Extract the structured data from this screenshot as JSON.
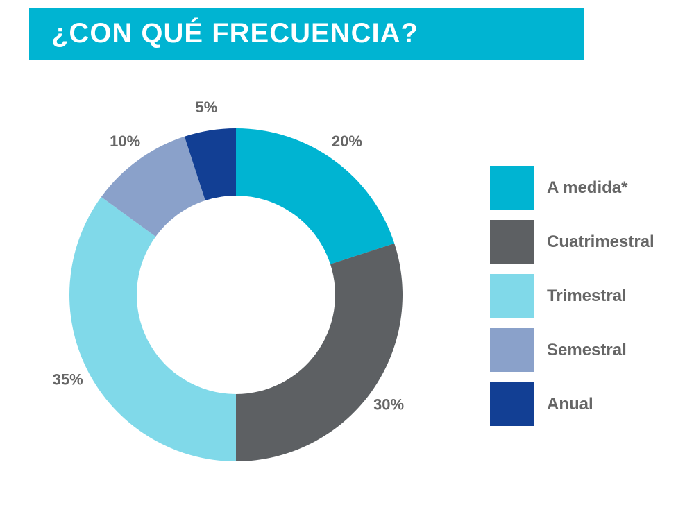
{
  "title": "¿CON QUÉ FRECUENCIA?",
  "colors": {
    "title_bg": "#00b4d2",
    "title_text": "#ffffff",
    "label_text": "#666666"
  },
  "chart_data": {
    "type": "pie",
    "subtype": "donut",
    "title": "¿CON QUÉ FRECUENCIA?",
    "legend_position": "right",
    "slices": [
      {
        "name": "A medida*",
        "value": 20,
        "label": "20%",
        "color": "#00b4d2"
      },
      {
        "name": "Cuatrimestral",
        "value": 30,
        "label": "30%",
        "color": "#5d6063"
      },
      {
        "name": "Trimestral",
        "value": 35,
        "label": "35%",
        "color": "#80d9e9"
      },
      {
        "name": "Semestral",
        "value": 10,
        "label": "10%",
        "color": "#8aa1ca"
      },
      {
        "name": "Anual",
        "value": 5,
        "label": "5%",
        "color": "#123f94"
      }
    ]
  }
}
